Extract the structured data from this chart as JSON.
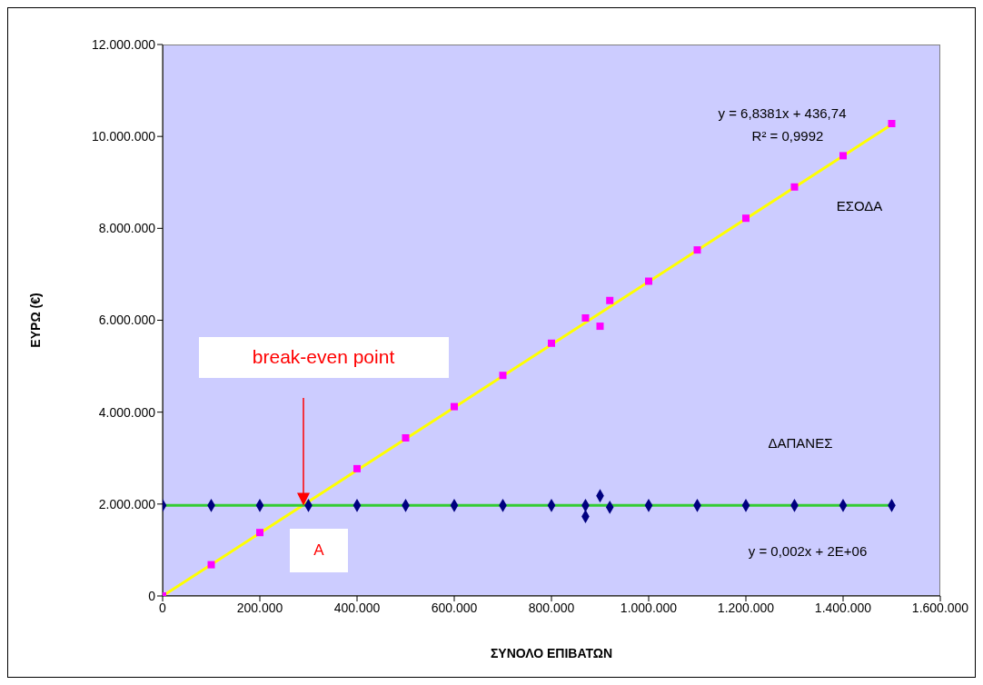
{
  "chart_data": {
    "type": "scatter",
    "xlabel": "ΣΥΝΟΛΟ ΕΠΙΒΑΤΩΝ",
    "ylabel": "ΕΥΡΩ (€)",
    "xlim": [
      0,
      1600000
    ],
    "ylim": [
      0,
      12000000
    ],
    "xticks": [
      0,
      {
        "value": 200000,
        "label": "200.000"
      },
      {
        "value": 400000,
        "label": "400.000"
      },
      {
        "value": 600000,
        "label": "600.000"
      },
      {
        "value": 800000,
        "label": "800.000"
      },
      {
        "value": 1000000,
        "label": "1.000.000"
      },
      {
        "value": 1200000,
        "label": "1.200.000"
      },
      {
        "value": 1400000,
        "label": "1.400.000"
      },
      {
        "value": 1600000,
        "label": "1.600.000"
      }
    ],
    "yticks": [
      0,
      {
        "value": 2000000,
        "label": "2.000.000"
      },
      {
        "value": 4000000,
        "label": "4.000.000"
      },
      {
        "value": 6000000,
        "label": "6.000.000"
      },
      {
        "value": 8000000,
        "label": "8.000.000"
      },
      {
        "value": 10000000,
        "label": "10.000.000"
      },
      {
        "value": 12000000,
        "label": "12.000.000"
      }
    ],
    "series": [
      {
        "marker": "square",
        "color": "#ff00ff",
        "x": [
          0,
          100000,
          200000,
          400000,
          500000,
          600000,
          700000,
          800000,
          870000,
          900000,
          920000,
          1000000,
          1100000,
          1200000,
          1300000,
          1400000,
          1500000
        ],
        "values": [
          0,
          680000,
          1380000,
          2770000,
          3440000,
          4120000,
          4800000,
          5500000,
          6050000,
          5870000,
          6430000,
          6850000,
          7530000,
          8220000,
          8900000,
          9580000,
          10280000
        ]
      },
      {
        "marker": "diamond",
        "color": "#000080",
        "x": [
          0,
          100000,
          200000,
          300000,
          400000,
          500000,
          600000,
          700000,
          800000,
          870000,
          870000,
          900000,
          920000,
          1000000,
          1100000,
          1200000,
          1300000,
          1400000,
          1500000
        ],
        "values": [
          1970000,
          1970000,
          1970000,
          1970000,
          1970000,
          1970000,
          1970000,
          1970000,
          1970000,
          1970000,
          1730000,
          2180000,
          1930000,
          1970000,
          1970000,
          1970000,
          1970000,
          1970000,
          1970000
        ]
      },
      {
        "type": "line",
        "color": "#ffff00",
        "x": [
          0,
          1500000
        ],
        "values": [
          0,
          10260000
        ]
      },
      {
        "type": "line",
        "color": "#33cc33",
        "x": [
          0,
          1500000
        ],
        "values": [
          1970000,
          1970000
        ]
      }
    ],
    "annotations": [
      "y = 6,8381x + 436,74",
      "R² = 0,9992",
      "ΕΣΟΔΑ",
      "ΔΑΠΑΝΕΣ",
      "y = 0,002x + 2E+06",
      "break-even point",
      "A"
    ]
  }
}
